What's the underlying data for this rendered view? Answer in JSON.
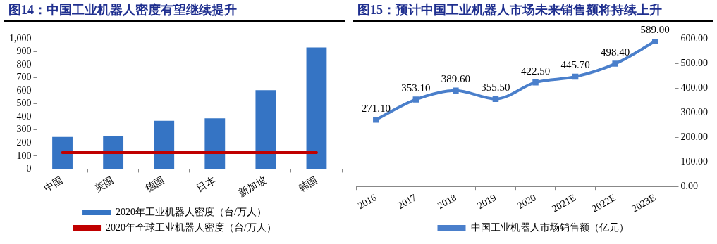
{
  "chart_data": [
    {
      "type": "bar",
      "title": "图14：中国工业机器人密度有望继续提升",
      "categories": [
        "中国",
        "美国",
        "德国",
        "日本",
        "新加坡",
        "韩国"
      ],
      "series": [
        {
          "name": "2020年工业机器人密度（台/万人）",
          "type": "bar",
          "color": "#3574c4",
          "values": [
            246,
            255,
            371,
            390,
            605,
            932
          ]
        },
        {
          "name": "2020年全球工业机器人密度（台/万人）",
          "type": "line",
          "color": "#c00000",
          "values": [
            126,
            126,
            126,
            126,
            126,
            126
          ]
        }
      ],
      "ylim": [
        0,
        1000
      ],
      "yticks": [
        0,
        100,
        200,
        300,
        400,
        500,
        600,
        700,
        800,
        900,
        {
          "value": 1000,
          "label": "1,000"
        }
      ],
      "legend": "bottom"
    },
    {
      "type": "line",
      "title": "图15：预计中国工业机器人市场未来销售额将持续上升",
      "categories": [
        "2016",
        "2017",
        "2018",
        "2019",
        "2020",
        "2021E",
        "2022E",
        "2023E"
      ],
      "series": [
        {
          "name": "中国工业机器人市场销售额（亿元）",
          "color": "#4a7fcb",
          "axis": "y2",
          "values": [
            271.1,
            353.1,
            389.6,
            355.5,
            422.5,
            445.7,
            498.4,
            589.0
          ],
          "value_labels": [
            "271.10",
            "353.10",
            "389.60",
            "355.50",
            "422.50",
            "445.70",
            "498.40",
            "589.00"
          ]
        }
      ],
      "y2lim": [
        0,
        600
      ],
      "y2ticks": [
        {
          "value": 0,
          "label": "0.00"
        },
        {
          "value": 100,
          "label": "100.00"
        },
        {
          "value": 200,
          "label": "200.00"
        },
        {
          "value": 300,
          "label": "300.00"
        },
        {
          "value": 400,
          "label": "400.00"
        },
        {
          "value": 500,
          "label": "500.00"
        },
        {
          "value": 600,
          "label": "600.00"
        }
      ],
      "marker": "square",
      "legend": "bottom"
    }
  ]
}
